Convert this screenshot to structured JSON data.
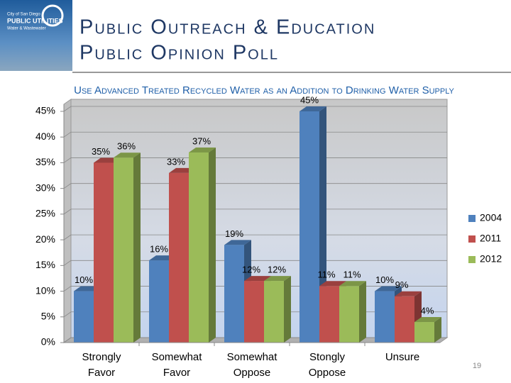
{
  "header": {
    "logo": {
      "line1": "City of San Diego",
      "line2": "PUBLIC UTILITIES",
      "line3": "Water & Wastewater"
    },
    "title_line1": "Public Outreach & Education",
    "title_line2": "Public Opinion Poll"
  },
  "page_number": "19",
  "chart_data": {
    "type": "bar3d",
    "title": "Use Advanced Treated Recycled Water as an Addition to Drinking Water Supply",
    "categories": [
      "Strongly Favor",
      "Somewhat Favor",
      "Somewhat Oppose",
      "Stongly Oppose",
      "Unsure"
    ],
    "series": [
      {
        "name": "2004",
        "color": "#4f81bd",
        "values": [
          10,
          16,
          19,
          45,
          10
        ],
        "value_labels": [
          "10%",
          "16%",
          "19%",
          "45%",
          "10%"
        ]
      },
      {
        "name": "2011",
        "color": "#c0504d",
        "values": [
          35,
          33,
          12,
          11,
          9
        ],
        "value_labels": [
          "35%",
          "33%",
          "12%",
          "11%",
          "9%"
        ]
      },
      {
        "name": "2012",
        "color": "#9bbb59",
        "values": [
          36,
          37,
          12,
          11,
          4
        ],
        "value_labels": [
          "36%",
          "37%",
          "12%",
          "11%",
          "4%"
        ]
      }
    ],
    "ylim": [
      0,
      45
    ],
    "yticks": [
      {
        "value": 0,
        "label": "0%"
      },
      {
        "value": 5,
        "label": "5%"
      },
      {
        "value": 10,
        "label": "10%"
      },
      {
        "value": 15,
        "label": "15%"
      },
      {
        "value": 20,
        "label": "20%"
      },
      {
        "value": 25,
        "label": "25%"
      },
      {
        "value": 30,
        "label": "30%"
      },
      {
        "value": 35,
        "label": "35%"
      },
      {
        "value": 40,
        "label": "40%"
      },
      {
        "value": 45,
        "label": "45%"
      }
    ],
    "grid": true,
    "legend": "right"
  }
}
